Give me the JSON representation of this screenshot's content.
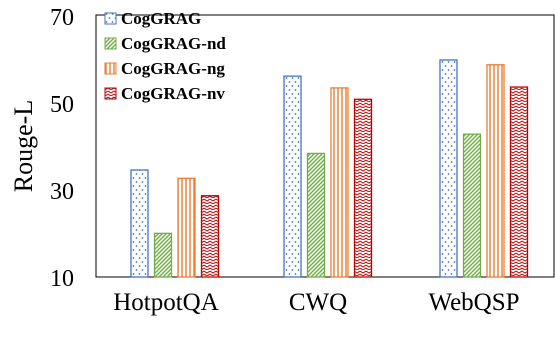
{
  "chart_data": {
    "type": "bar",
    "categories": [
      "HotpotQA",
      "CWQ",
      "WebQSP"
    ],
    "series": [
      {
        "name": "CogGRAG",
        "values": [
          34.5,
          56.0,
          59.7
        ],
        "color": "#4472C4",
        "pattern": "dots"
      },
      {
        "name": "CogGRAG-nd",
        "values": [
          20.0,
          38.3,
          42.7
        ],
        "color": "#70AD47",
        "pattern": "diagonal"
      },
      {
        "name": "CogGRAG-ng",
        "values": [
          32.6,
          53.3,
          58.6
        ],
        "color": "#ED7D31",
        "pattern": "vertical"
      },
      {
        "name": "CogGRAG-nv",
        "values": [
          28.6,
          50.7,
          53.5
        ],
        "color": "#C00000",
        "pattern": "zigzag"
      }
    ],
    "ylabel": "Rouge-L",
    "ylim": [
      10,
      70
    ],
    "yticks": [
      "10",
      "30",
      "50",
      "70"
    ],
    "grid": false,
    "legend_position": "top-left"
  }
}
